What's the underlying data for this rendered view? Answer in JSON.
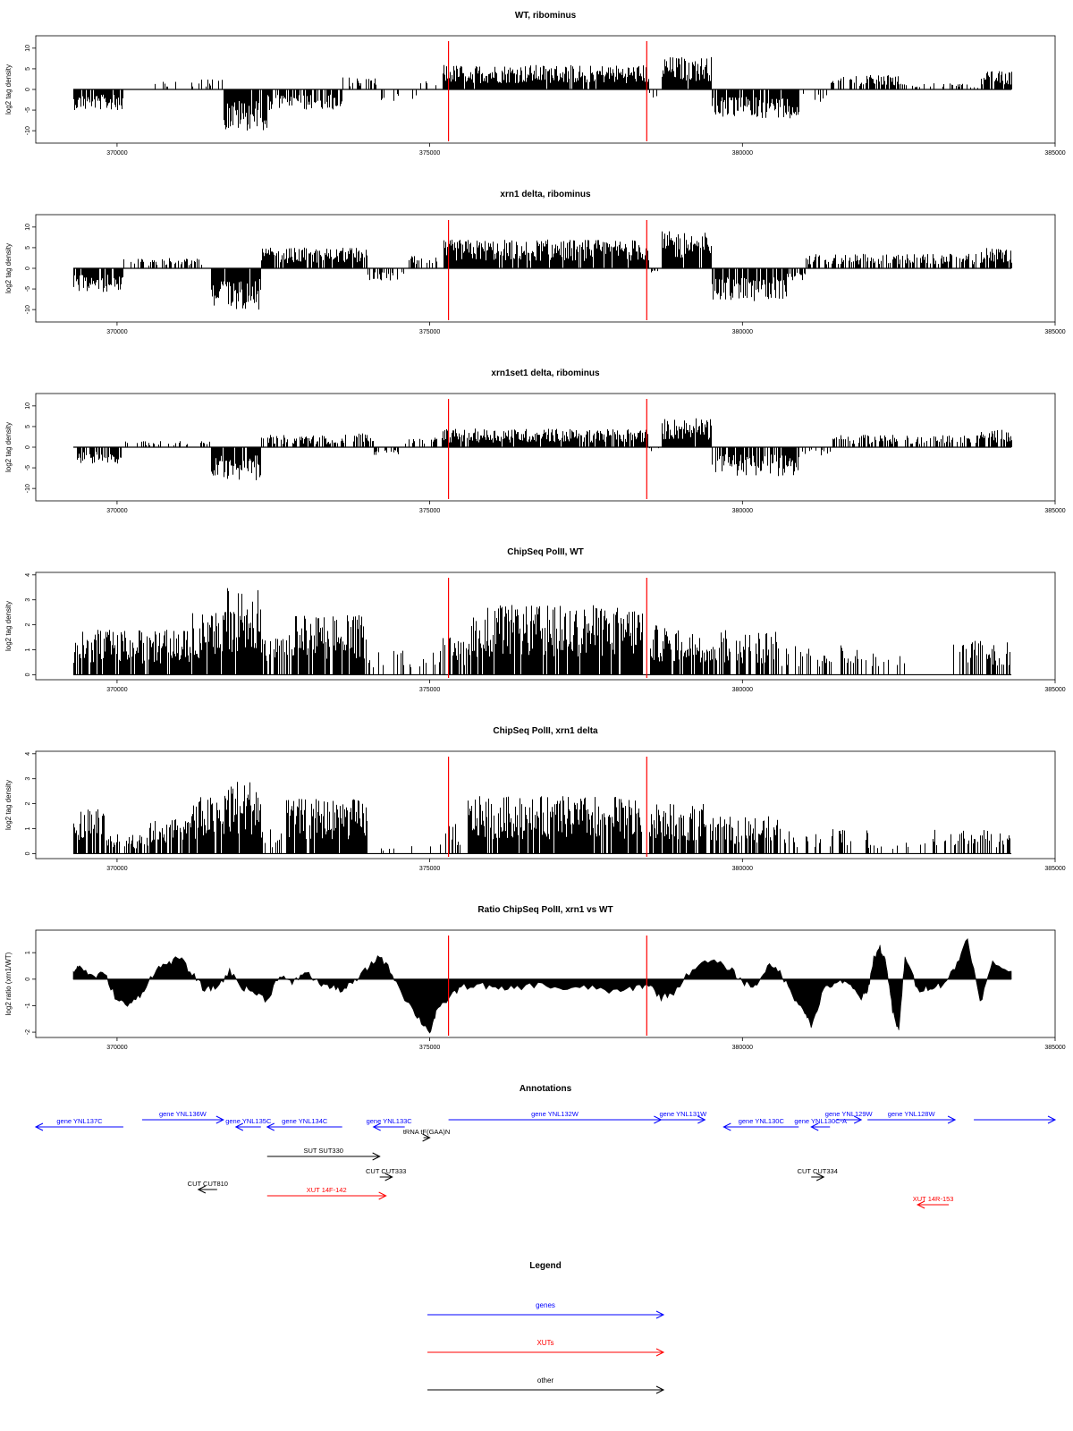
{
  "colors": {
    "gene": "#0000ff",
    "xut": "#ff0000",
    "other": "#000000",
    "marker": "#ff0000",
    "bars": "#000000"
  },
  "chart_data": [
    {
      "type": "bar",
      "title": "WT, ribominus",
      "ylabel": "log2 tag density",
      "xlim": [
        368700,
        385000
      ],
      "ylim": [
        -13,
        13
      ],
      "x_ticks": [
        370000,
        375000,
        380000,
        385000
      ],
      "x_tick_labels": [
        "370000",
        "375000",
        "380000",
        "385000"
      ],
      "y_ticks": [
        -10,
        -5,
        0,
        5,
        10
      ],
      "y_tick_labels": [
        "-10",
        "-5",
        "0",
        "5",
        "10"
      ],
      "markers": [
        375300,
        378470
      ],
      "segments": [
        {
          "x": [
            369300,
            370100
          ],
          "y": -5,
          "fill": 0.85
        },
        {
          "x": [
            370100,
            370500
          ],
          "y": 0,
          "fill": 0.15
        },
        {
          "x": [
            370500,
            371300
          ],
          "y": 2,
          "fill": 0.2
        },
        {
          "x": [
            371300,
            371700
          ],
          "y": 2.5,
          "fill": 0.4
        },
        {
          "x": [
            371700,
            372400
          ],
          "y": -10,
          "fill": 0.9
        },
        {
          "x": [
            372400,
            373600
          ],
          "y": -5,
          "fill": 0.7
        },
        {
          "x": [
            373600,
            374200
          ],
          "y": 3,
          "fill": 0.35
        },
        {
          "x": [
            374200,
            374800
          ],
          "y": -3,
          "fill": 0.2
        },
        {
          "x": [
            374800,
            375200
          ],
          "y": 2,
          "fill": 0.25
        },
        {
          "x": [
            375200,
            378500
          ],
          "y": 6,
          "fill": 0.95
        },
        {
          "x": [
            378500,
            378700
          ],
          "y": -2,
          "fill": 0.3
        },
        {
          "x": [
            378700,
            379500
          ],
          "y": 8,
          "fill": 0.95
        },
        {
          "x": [
            379500,
            380900
          ],
          "y": -7,
          "fill": 0.9
        },
        {
          "x": [
            380900,
            381400
          ],
          "y": -3,
          "fill": 0.3
        },
        {
          "x": [
            381400,
            382500
          ],
          "y": 3.5,
          "fill": 0.5
        },
        {
          "x": [
            382500,
            383800
          ],
          "y": 1.5,
          "fill": 0.25
        },
        {
          "x": [
            383800,
            384300
          ],
          "y": 4.5,
          "fill": 0.8
        }
      ]
    },
    {
      "type": "bar",
      "title": "xrn1 delta, ribominus",
      "ylabel": "log2 tag density",
      "xlim": [
        368700,
        385000
      ],
      "ylim": [
        -13,
        13
      ],
      "x_ticks": [
        370000,
        375000,
        380000,
        385000
      ],
      "x_tick_labels": [
        "370000",
        "375000",
        "380000",
        "385000"
      ],
      "y_ticks": [
        -10,
        -5,
        0,
        5,
        10
      ],
      "y_tick_labels": [
        "-10",
        "-5",
        "0",
        "5",
        "10"
      ],
      "markers": [
        375300,
        378470
      ],
      "segments": [
        {
          "x": [
            369300,
            370100
          ],
          "y": -6,
          "fill": 0.9
        },
        {
          "x": [
            370100,
            371500
          ],
          "y": 2.5,
          "fill": 0.4
        },
        {
          "x": [
            371500,
            372300
          ],
          "y": -10,
          "fill": 0.9
        },
        {
          "x": [
            372300,
            374000
          ],
          "y": 5,
          "fill": 0.9
        },
        {
          "x": [
            374000,
            374600
          ],
          "y": -3,
          "fill": 0.5
        },
        {
          "x": [
            374600,
            375200
          ],
          "y": 3,
          "fill": 0.4
        },
        {
          "x": [
            375200,
            378500
          ],
          "y": 7,
          "fill": 0.95
        },
        {
          "x": [
            378500,
            378700
          ],
          "y": -1,
          "fill": 0.3
        },
        {
          "x": [
            378700,
            379500
          ],
          "y": 9,
          "fill": 0.95
        },
        {
          "x": [
            379500,
            380700
          ],
          "y": -8,
          "fill": 0.9
        },
        {
          "x": [
            380700,
            381000
          ],
          "y": -3,
          "fill": 0.4
        },
        {
          "x": [
            381000,
            383800
          ],
          "y": 3.5,
          "fill": 0.6
        },
        {
          "x": [
            383800,
            384300
          ],
          "y": 5,
          "fill": 0.9
        }
      ]
    },
    {
      "type": "bar",
      "title": "xrn1set1 delta, ribominus",
      "ylabel": "log2 tag density",
      "xlim": [
        368700,
        385000
      ],
      "ylim": [
        -13,
        13
      ],
      "x_ticks": [
        370000,
        375000,
        380000,
        385000
      ],
      "x_tick_labels": [
        "370000",
        "375000",
        "380000",
        "385000"
      ],
      "y_ticks": [
        -10,
        -5,
        0,
        5,
        10
      ],
      "y_tick_labels": [
        "-10",
        "-5",
        "0",
        "5",
        "10"
      ],
      "markers": [
        375300,
        378470
      ],
      "segments": [
        {
          "x": [
            369300,
            370100
          ],
          "y": -4,
          "fill": 0.7
        },
        {
          "x": [
            370100,
            371500
          ],
          "y": 1.5,
          "fill": 0.2
        },
        {
          "x": [
            371500,
            372300
          ],
          "y": -8,
          "fill": 0.85
        },
        {
          "x": [
            372300,
            373500
          ],
          "y": 3,
          "fill": 0.7
        },
        {
          "x": [
            373500,
            374100
          ],
          "y": 3.5,
          "fill": 0.6
        },
        {
          "x": [
            374100,
            374600
          ],
          "y": -2,
          "fill": 0.3
        },
        {
          "x": [
            374600,
            375200
          ],
          "y": 2.5,
          "fill": 0.35
        },
        {
          "x": [
            375200,
            378500
          ],
          "y": 4.5,
          "fill": 0.9
        },
        {
          "x": [
            378500,
            378700
          ],
          "y": -1,
          "fill": 0.2
        },
        {
          "x": [
            378700,
            379500
          ],
          "y": 7,
          "fill": 0.95
        },
        {
          "x": [
            379500,
            380900
          ],
          "y": -7,
          "fill": 0.85
        },
        {
          "x": [
            380900,
            381400
          ],
          "y": -2,
          "fill": 0.3
        },
        {
          "x": [
            381400,
            383800
          ],
          "y": 3,
          "fill": 0.5
        },
        {
          "x": [
            383800,
            384300
          ],
          "y": 4.5,
          "fill": 0.8
        }
      ]
    },
    {
      "type": "bar",
      "title": "ChipSeq PolII, WT",
      "ylabel": "log2 tag density",
      "xlim": [
        368700,
        385000
      ],
      "ylim": [
        -0.2,
        4.1
      ],
      "x_ticks": [
        370000,
        375000,
        380000,
        385000
      ],
      "x_tick_labels": [
        "370000",
        "375000",
        "380000",
        "385000"
      ],
      "y_ticks": [
        0,
        1,
        2,
        3,
        4
      ],
      "y_tick_labels": [
        "0",
        "1",
        "2",
        "3",
        "4"
      ],
      "markers": [
        375300,
        378470
      ],
      "segments": [
        {
          "x": [
            369300,
            371200
          ],
          "y": 1.8,
          "fill": 0.85
        },
        {
          "x": [
            371200,
            371700
          ],
          "y": 2.5,
          "fill": 0.9
        },
        {
          "x": [
            371700,
            372300
          ],
          "y": 3.6,
          "fill": 0.95
        },
        {
          "x": [
            372300,
            372700
          ],
          "y": 1.5,
          "fill": 0.7
        },
        {
          "x": [
            372700,
            374000
          ],
          "y": 2.4,
          "fill": 0.85
        },
        {
          "x": [
            374000,
            375200
          ],
          "y": 1.0,
          "fill": 0.12
        },
        {
          "x": [
            375200,
            375600
          ],
          "y": 1.5,
          "fill": 0.5
        },
        {
          "x": [
            375600,
            378400
          ],
          "y": 2.8,
          "fill": 0.9
        },
        {
          "x": [
            378500,
            379400
          ],
          "y": 2.0,
          "fill": 0.85
        },
        {
          "x": [
            379400,
            380600
          ],
          "y": 1.8,
          "fill": 0.6
        },
        {
          "x": [
            380600,
            381600
          ],
          "y": 1.2,
          "fill": 0.3
        },
        {
          "x": [
            381600,
            382600
          ],
          "y": 1.3,
          "fill": 0.25
        },
        {
          "x": [
            382600,
            383300
          ],
          "y": 0,
          "fill": 0
        },
        {
          "x": [
            383300,
            384300
          ],
          "y": 1.4,
          "fill": 0.5
        }
      ]
    },
    {
      "type": "bar",
      "title": "ChipSeq PolII, xrn1 delta",
      "ylabel": "log2 tag density",
      "xlim": [
        368700,
        385000
      ],
      "ylim": [
        -0.2,
        4.1
      ],
      "x_ticks": [
        370000,
        375000,
        380000,
        385000
      ],
      "x_tick_labels": [
        "370000",
        "375000",
        "380000",
        "385000"
      ],
      "y_ticks": [
        0,
        1,
        2,
        3,
        4
      ],
      "y_tick_labels": [
        "0",
        "1",
        "2",
        "3",
        "4"
      ],
      "markers": [
        375300,
        378470
      ],
      "segments": [
        {
          "x": [
            369300,
            369800
          ],
          "y": 1.8,
          "fill": 0.85
        },
        {
          "x": [
            369800,
            370500
          ],
          "y": 0.8,
          "fill": 0.5
        },
        {
          "x": [
            370500,
            371200
          ],
          "y": 1.5,
          "fill": 0.7
        },
        {
          "x": [
            371200,
            371700
          ],
          "y": 2.3,
          "fill": 0.9
        },
        {
          "x": [
            371700,
            372300
          ],
          "y": 3.0,
          "fill": 0.95
        },
        {
          "x": [
            372300,
            372700
          ],
          "y": 1.0,
          "fill": 0.5
        },
        {
          "x": [
            372700,
            374000
          ],
          "y": 2.2,
          "fill": 0.85
        },
        {
          "x": [
            374000,
            375200
          ],
          "y": 0.4,
          "fill": 0.1
        },
        {
          "x": [
            375200,
            375600
          ],
          "y": 1.2,
          "fill": 0.4
        },
        {
          "x": [
            375600,
            378400
          ],
          "y": 2.3,
          "fill": 0.9
        },
        {
          "x": [
            378500,
            379400
          ],
          "y": 2.0,
          "fill": 0.85
        },
        {
          "x": [
            379400,
            380600
          ],
          "y": 1.5,
          "fill": 0.6
        },
        {
          "x": [
            380600,
            382000
          ],
          "y": 1.0,
          "fill": 0.2
        },
        {
          "x": [
            382000,
            382600
          ],
          "y": 0.4,
          "fill": 0.05
        },
        {
          "x": [
            382600,
            383300
          ],
          "y": 1.0,
          "fill": 0.3
        },
        {
          "x": [
            383300,
            384300
          ],
          "y": 1.0,
          "fill": 0.4
        }
      ]
    },
    {
      "type": "area",
      "title": "Ratio ChipSeq PolII, xrn1 vs WT",
      "ylabel": "log2 ratio (xrn1/WT)",
      "xlim": [
        368700,
        385000
      ],
      "ylim": [
        -2.2,
        1.85
      ],
      "x_ticks": [
        370000,
        375000,
        380000,
        385000
      ],
      "x_tick_labels": [
        "370000",
        "375000",
        "380000",
        "385000"
      ],
      "y_ticks": [
        -2,
        -1,
        0,
        1
      ],
      "y_tick_labels": [
        "-2",
        "-1",
        "0",
        "1"
      ],
      "markers": [
        375300,
        378470
      ],
      "x": [
        369300,
        369400,
        369600,
        369800,
        370000,
        370200,
        370400,
        370600,
        370800,
        371000,
        371200,
        371400,
        371600,
        371800,
        372000,
        372200,
        372400,
        372600,
        372800,
        373000,
        373200,
        373400,
        373600,
        373800,
        374000,
        374200,
        374400,
        374600,
        374800,
        375000,
        375100,
        375300,
        375500,
        375800,
        376100,
        376400,
        376800,
        377200,
        377600,
        378000,
        378300,
        378500,
        378700,
        378900,
        379200,
        379500,
        379800,
        380000,
        380200,
        380400,
        380600,
        380800,
        381000,
        381100,
        381300,
        381500,
        381700,
        381900,
        382000,
        382100,
        382200,
        382300,
        382400,
        382500,
        382600,
        382800,
        383000,
        383200,
        383400,
        383600,
        383800,
        384000,
        384300
      ],
      "y": [
        0.3,
        0.5,
        0.1,
        0.2,
        -0.8,
        -1.0,
        -0.5,
        0.3,
        0.6,
        0.8,
        0.2,
        -0.4,
        -0.3,
        0.3,
        -0.3,
        -0.5,
        -0.8,
        0.2,
        -0.2,
        0.3,
        -0.1,
        -0.3,
        -0.4,
        -0.1,
        0.4,
        0.9,
        0.2,
        -0.7,
        -1.4,
        -2.0,
        -1.3,
        -0.7,
        -0.3,
        -0.2,
        -0.4,
        -0.3,
        -0.2,
        -0.4,
        -0.3,
        -0.5,
        -0.3,
        -0.2,
        -0.7,
        -0.5,
        0.4,
        0.7,
        0.4,
        -0.1,
        -0.3,
        0.5,
        0.3,
        -0.6,
        -1.2,
        -1.8,
        -0.4,
        -0.1,
        -0.2,
        -0.7,
        -0.5,
        0.8,
        1.2,
        0.6,
        -1.2,
        -2.0,
        0.9,
        -0.4,
        -0.3,
        -0.2,
        0.4,
        1.6,
        -0.9,
        0.6,
        0.3
      ]
    }
  ],
  "annotations": {
    "title": "Annotations",
    "xlim": [
      368700,
      385000
    ],
    "features": [
      {
        "label": "gene YNL137C",
        "type": "gene",
        "strand": "-",
        "start": 368700,
        "end": 370100,
        "row": 0
      },
      {
        "label": "gene YNL136W",
        "type": "gene",
        "strand": "+",
        "start": 370400,
        "end": 371700,
        "row": -1
      },
      {
        "label": "gene YNL135C",
        "type": "gene",
        "strand": "-",
        "start": 371900,
        "end": 372300,
        "row": 0
      },
      {
        "label": "gene YNL134C",
        "type": "gene",
        "strand": "-",
        "start": 372400,
        "end": 373600,
        "row": 0
      },
      {
        "label": "gene YNL133C",
        "type": "gene",
        "strand": "-",
        "start": 374100,
        "end": 374600,
        "row": 0
      },
      {
        "label": "tRNA tF(GAA)N",
        "type": "other",
        "strand": "+",
        "start": 374900,
        "end": 375000,
        "row": 1
      },
      {
        "label": "gene YNL132W",
        "type": "gene",
        "strand": "+",
        "start": 375300,
        "end": 378700,
        "row": -1
      },
      {
        "label": "gene YNL131W",
        "type": "gene",
        "strand": "+",
        "start": 378700,
        "end": 379400,
        "row": -1
      },
      {
        "label": "gene YNL130C",
        "type": "gene",
        "strand": "-",
        "start": 379700,
        "end": 380900,
        "row": 0
      },
      {
        "label": "gene YNL130C-A",
        "type": "gene",
        "strand": "-",
        "start": 381100,
        "end": 381400,
        "row": 0
      },
      {
        "label": "gene YNL129W",
        "type": "gene",
        "strand": "+",
        "start": 381500,
        "end": 381900,
        "row": -1
      },
      {
        "label": "gene YNL128W",
        "type": "gene",
        "strand": "+",
        "start": 382000,
        "end": 383400,
        "row": -1
      },
      {
        "label": "",
        "type": "gene",
        "strand": "+",
        "start": 383700,
        "end": 385000,
        "row": -1
      },
      {
        "label": "SUT SUT330",
        "type": "other",
        "strand": "+",
        "start": 372400,
        "end": 374200,
        "row": 2
      },
      {
        "label": "CUT CUT333",
        "type": "other",
        "strand": "+",
        "start": 374200,
        "end": 374400,
        "row": 3
      },
      {
        "label": "CUT CUT334",
        "type": "other",
        "strand": "+",
        "start": 381100,
        "end": 381300,
        "row": 3
      },
      {
        "label": "CUT CUT810",
        "type": "other",
        "strand": "-",
        "start": 371300,
        "end": 371600,
        "row": 4
      },
      {
        "label": "XUT 14F-142",
        "type": "xut",
        "strand": "+",
        "start": 372400,
        "end": 374300,
        "row": 5
      },
      {
        "label": "XUT 14R-153",
        "type": "xut",
        "strand": "-",
        "start": 382800,
        "end": 383300,
        "row": 6
      }
    ]
  },
  "legend": {
    "title": "Legend",
    "items": [
      {
        "label": "genes",
        "type": "gene"
      },
      {
        "label": "XUTs",
        "type": "xut"
      },
      {
        "label": "other",
        "type": "other"
      }
    ]
  }
}
